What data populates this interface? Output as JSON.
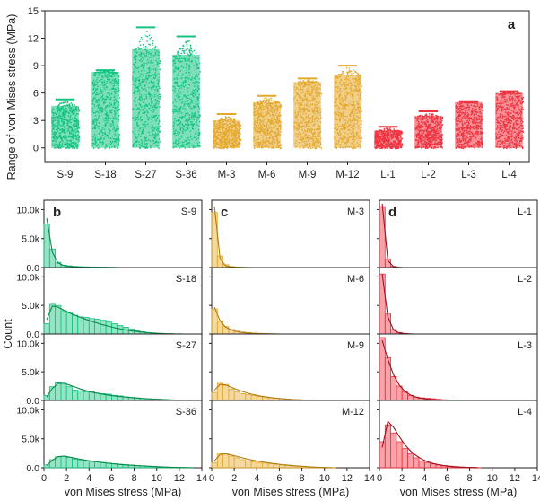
{
  "chart_data": [
    {
      "panel": "a",
      "type": "scatter",
      "subtype": "jitter-strip",
      "ylabel": "Range of von Mises stress (MPa)",
      "xlabel": "",
      "ylim": [
        -1.5,
        15
      ],
      "yticks": [
        0,
        3,
        6,
        9,
        12,
        15
      ],
      "categories": [
        "S-9",
        "S-18",
        "S-27",
        "S-36",
        "M-3",
        "M-6",
        "M-9",
        "M-12",
        "L-1",
        "L-2",
        "L-3",
        "L-4"
      ],
      "groups": [
        "S",
        "S",
        "S",
        "S",
        "M",
        "M",
        "M",
        "M",
        "L",
        "L",
        "L",
        "L"
      ],
      "ranges_max": [
        5.3,
        8.5,
        13.2,
        12.2,
        3.7,
        5.7,
        7.6,
        9.0,
        2.3,
        4.0,
        5.1,
        6.2
      ],
      "dense_max": [
        4.6,
        8.3,
        10.8,
        10.2,
        3.0,
        5.0,
        7.2,
        8.0,
        1.9,
        3.5,
        5.0,
        6.0
      ]
    },
    {
      "panel": "b",
      "type": "histogram",
      "color_group": "S",
      "xlabel": "von Mises stress (MPa)",
      "ylabel": "Count",
      "xlim": [
        0,
        14
      ],
      "ylim": [
        0,
        11000
      ],
      "xticks": [
        0,
        2,
        4,
        6,
        8,
        10,
        12,
        14
      ],
      "yticks": [
        "0.0",
        "5.0k",
        "10.0k"
      ],
      "bin_width": 0.5,
      "series": [
        {
          "name": "S-9",
          "counts": [
            7500,
            3200,
            900,
            400,
            300,
            200,
            150,
            120,
            100,
            90,
            80,
            60,
            40,
            20
          ],
          "fit": [
            8500,
            2600,
            800,
            350,
            200,
            120,
            80,
            50,
            30,
            20,
            10,
            5,
            0,
            0
          ]
        },
        {
          "name": "S-18",
          "counts": [
            1800,
            5200,
            5000,
            4100,
            3800,
            3300,
            3000,
            2900,
            2700,
            2600,
            2400,
            2100,
            1800,
            1500,
            1200,
            900,
            600,
            400,
            250,
            150,
            80,
            40
          ],
          "fit": [
            2500,
            4900,
            4700,
            4200,
            3700,
            3300,
            2900,
            2550,
            2200,
            1900,
            1600,
            1350,
            1100,
            900,
            720,
            570,
            440,
            330,
            240,
            170,
            110,
            70,
            40,
            20,
            10
          ]
        },
        {
          "name": "S-27",
          "counts": [
            900,
            2400,
            3100,
            3000,
            2400,
            1800,
            1700,
            1500,
            1500,
            1300,
            1200,
            1100,
            900,
            800,
            650,
            550,
            450,
            350,
            300,
            250,
            200,
            150,
            100,
            60,
            40,
            20
          ],
          "fit": [
            600,
            2100,
            3000,
            3000,
            2700,
            2350,
            2000,
            1700,
            1450,
            1250,
            1080,
            930,
            800,
            690,
            590,
            500,
            420,
            350,
            290,
            240,
            190,
            150,
            110,
            80,
            55,
            35,
            20,
            10
          ]
        },
        {
          "name": "S-36",
          "counts": [
            500,
            1400,
            1900,
            2000,
            1800,
            1500,
            1300,
            1200,
            1100,
            1000,
            900,
            800,
            700,
            620,
            550,
            480,
            400,
            350,
            280,
            220,
            180,
            130,
            90,
            60,
            40,
            20
          ],
          "fit": [
            400,
            1300,
            1900,
            2000,
            1850,
            1650,
            1450,
            1280,
            1130,
            1000,
            880,
            770,
            670,
            580,
            500,
            430,
            370,
            310,
            260,
            210,
            170,
            130,
            100,
            70,
            50,
            30,
            15
          ]
        }
      ]
    },
    {
      "panel": "c",
      "type": "histogram",
      "color_group": "M",
      "xlabel": "von Mises stress (MPa)",
      "ylabel": "Count",
      "xlim": [
        0,
        14
      ],
      "ylim": [
        0,
        11000
      ],
      "xticks": [
        0,
        2,
        4,
        6,
        8,
        10,
        12,
        14
      ],
      "yticks": [
        "0.0",
        "5.0k",
        "10.0k"
      ],
      "bin_width": 0.5,
      "series": [
        {
          "name": "M-3",
          "counts": [
            9500,
            2000,
            500,
            200,
            100,
            60,
            30
          ],
          "fit": [
            10500,
            1500,
            300,
            100,
            40,
            15,
            5
          ]
        },
        {
          "name": "M-6",
          "counts": [
            4400,
            2300,
            1300,
            800,
            500,
            350,
            250,
            180,
            120,
            80,
            50,
            30
          ],
          "fit": [
            4700,
            2300,
            1200,
            700,
            420,
            270,
            170,
            110,
            70,
            40,
            20,
            10
          ]
        },
        {
          "name": "M-9",
          "counts": [
            1400,
            3000,
            2800,
            2000,
            1500,
            1200,
            1000,
            850,
            700,
            600,
            500,
            400,
            320,
            250,
            180,
            120,
            80,
            50,
            30
          ],
          "fit": [
            1800,
            2800,
            2700,
            2300,
            1900,
            1550,
            1250,
            1000,
            800,
            640,
            500,
            390,
            300,
            220,
            160,
            110,
            70,
            40,
            20
          ]
        },
        {
          "name": "M-12",
          "counts": [
            900,
            2500,
            2400,
            2000,
            1700,
            1400,
            1200,
            1000,
            900,
            800,
            700,
            600,
            500,
            420,
            350,
            280,
            220,
            170,
            120,
            80,
            50,
            30
          ],
          "fit": [
            1200,
            2300,
            2400,
            2200,
            1950,
            1700,
            1470,
            1270,
            1090,
            930,
            790,
            660,
            550,
            450,
            360,
            280,
            210,
            150,
            100,
            60,
            30,
            10
          ]
        }
      ]
    },
    {
      "panel": "d",
      "type": "histogram",
      "color_group": "L",
      "xlabel": "von Mises stress (MPa)",
      "ylabel": "Count",
      "xlim": [
        0,
        14
      ],
      "ylim": [
        0,
        11000
      ],
      "xticks": [
        0,
        2,
        4,
        6,
        8,
        10,
        12,
        14
      ],
      "yticks": [
        "0.0",
        "5.0k",
        "10.0k"
      ],
      "bin_width": 0.5,
      "series": [
        {
          "name": "L-1",
          "counts": [
            10500,
            1500,
            200,
            50
          ],
          "fit": [
            11000,
            1200,
            150,
            20
          ]
        },
        {
          "name": "L-2",
          "counts": [
            10500,
            3500,
            800,
            250,
            100,
            40
          ],
          "fit": [
            10500,
            3000,
            700,
            200,
            60,
            20
          ]
        },
        {
          "name": "L-3",
          "counts": [
            11000,
            7500,
            4200,
            2500,
            1500,
            900,
            600,
            450,
            400,
            300,
            200,
            120,
            60,
            30
          ],
          "fit": [
            10500,
            7200,
            4500,
            2700,
            1600,
            950,
            580,
            360,
            230,
            150,
            100,
            60,
            35,
            20
          ]
        },
        {
          "name": "L-4",
          "counts": [
            4500,
            7400,
            6000,
            4500,
            3300,
            2400,
            1700,
            1200,
            900,
            650,
            500,
            380,
            280,
            200,
            140,
            90,
            60,
            30
          ],
          "fit": [
            3500,
            8000,
            7000,
            5400,
            4000,
            2900,
            2100,
            1500,
            1050,
            740,
            520,
            360,
            250,
            170,
            110,
            70,
            40,
            20
          ]
        }
      ]
    }
  ],
  "colors": {
    "S": "#13c480",
    "M": "#e4a82c",
    "L": "#ef3340",
    "S_dark": "#0b8a4a",
    "M_dark": "#b07a0f",
    "L_dark": "#a3101c"
  }
}
